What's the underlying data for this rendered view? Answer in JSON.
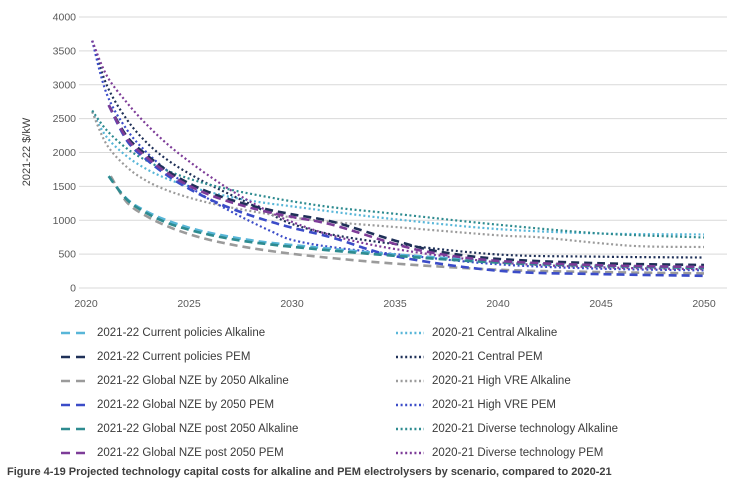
{
  "caption": "Figure 4-19 Projected technology capital costs for alkaline and PEM electrolysers by scenario, compared to 2020-21",
  "chart_data": {
    "type": "line",
    "title": "",
    "xlabel": "",
    "ylabel": "2021-22 $/kW",
    "xlim": [
      2020,
      2050
    ],
    "ylim": [
      0,
      4000
    ],
    "y_ticks": [
      0,
      500,
      1000,
      1500,
      2000,
      2500,
      3000,
      3500,
      4000
    ],
    "x_ticks": [
      2020,
      2025,
      2030,
      2035,
      2040,
      2045,
      2050
    ],
    "grid": "horizontal",
    "legend_position": "bottom-two-columns",
    "colors": {
      "cyan": "#58B6D8",
      "navy": "#1F3058",
      "gray": "#9B9B9B",
      "blue": "#3B4CC8",
      "teal": "#2E8B90",
      "purple": "#7D3C98",
      "gridline": "#D9D9D9",
      "tick_text": "#595959"
    },
    "series": [
      {
        "name": "2021-22 Current policies Alkaline",
        "color": "#58B6D8",
        "dash": "dashed",
        "points": [
          [
            2021.1,
            1650
          ],
          [
            2022,
            1310
          ],
          [
            2023,
            1120
          ],
          [
            2024,
            990
          ],
          [
            2025,
            890
          ],
          [
            2026,
            815
          ],
          [
            2027,
            755
          ],
          [
            2028,
            705
          ],
          [
            2029,
            665
          ],
          [
            2030,
            635
          ],
          [
            2032,
            575
          ],
          [
            2035,
            495
          ],
          [
            2040,
            395
          ],
          [
            2045,
            335
          ],
          [
            2050,
            300
          ]
        ]
      },
      {
        "name": "2021-22 Current policies PEM",
        "color": "#1F3058",
        "dash": "dashed",
        "points": [
          [
            2021.1,
            2700
          ],
          [
            2022,
            2230
          ],
          [
            2023,
            1950
          ],
          [
            2024,
            1720
          ],
          [
            2025,
            1545
          ],
          [
            2026,
            1410
          ],
          [
            2027,
            1305
          ],
          [
            2028,
            1218
          ],
          [
            2029,
            1147
          ],
          [
            2030,
            1088
          ],
          [
            2032,
            975
          ],
          [
            2035,
            700
          ],
          [
            2037,
            545
          ],
          [
            2040,
            430
          ],
          [
            2045,
            365
          ],
          [
            2050,
            340
          ]
        ]
      },
      {
        "name": "2021-22 Global NZE by 2050 Alkaline",
        "color": "#9B9B9B",
        "dash": "dashed",
        "points": [
          [
            2021.2,
            1650
          ],
          [
            2022,
            1260
          ],
          [
            2023,
            1050
          ],
          [
            2024,
            905
          ],
          [
            2025,
            795
          ],
          [
            2026,
            710
          ],
          [
            2027,
            645
          ],
          [
            2028,
            590
          ],
          [
            2029,
            545
          ],
          [
            2030,
            505
          ],
          [
            2032,
            440
          ],
          [
            2035,
            360
          ],
          [
            2040,
            270
          ],
          [
            2045,
            235
          ],
          [
            2050,
            215
          ]
        ]
      },
      {
        "name": "2021-22 Global NZE by 2050 PEM",
        "color": "#3B4CC8",
        "dash": "dashed",
        "points": [
          [
            2021.1,
            2700
          ],
          [
            2022,
            2170
          ],
          [
            2023,
            1880
          ],
          [
            2024,
            1650
          ],
          [
            2025,
            1465
          ],
          [
            2026,
            1310
          ],
          [
            2027,
            1180
          ],
          [
            2028,
            1070
          ],
          [
            2029,
            975
          ],
          [
            2030,
            890
          ],
          [
            2032,
            740
          ],
          [
            2035,
            470
          ],
          [
            2040,
            255
          ],
          [
            2045,
            205
          ],
          [
            2050,
            180
          ]
        ]
      },
      {
        "name": "2021-22 Global NZE post 2050 Alkaline",
        "color": "#2E8B90",
        "dash": "dashed",
        "points": [
          [
            2021.1,
            1650
          ],
          [
            2022,
            1300
          ],
          [
            2023,
            1095
          ],
          [
            2024,
            955
          ],
          [
            2025,
            860
          ],
          [
            2026,
            785
          ],
          [
            2027,
            725
          ],
          [
            2028,
            678
          ],
          [
            2029,
            640
          ],
          [
            2030,
            608
          ],
          [
            2032,
            550
          ],
          [
            2035,
            475
          ],
          [
            2040,
            375
          ],
          [
            2045,
            325
          ],
          [
            2050,
            295
          ]
        ]
      },
      {
        "name": "2021-22 Global NZE post 2050 PEM",
        "color": "#7D3C98",
        "dash": "dashed",
        "points": [
          [
            2021.1,
            2700
          ],
          [
            2022,
            2200
          ],
          [
            2023,
            1915
          ],
          [
            2024,
            1685
          ],
          [
            2025,
            1510
          ],
          [
            2026,
            1375
          ],
          [
            2027,
            1270
          ],
          [
            2028,
            1183
          ],
          [
            2029,
            1110
          ],
          [
            2030,
            1050
          ],
          [
            2032,
            930
          ],
          [
            2035,
            650
          ],
          [
            2037,
            510
          ],
          [
            2040,
            400
          ],
          [
            2045,
            335
          ],
          [
            2050,
            310
          ]
        ]
      },
      {
        "name": "2020-21 Central Alkaline",
        "color": "#58B6D8",
        "dash": "dotted",
        "points": [
          [
            2020.3,
            2600
          ],
          [
            2021,
            2230
          ],
          [
            2022,
            1940
          ],
          [
            2023,
            1745
          ],
          [
            2024,
            1605
          ],
          [
            2025,
            1500
          ],
          [
            2026,
            1415
          ],
          [
            2027,
            1345
          ],
          [
            2028,
            1288
          ],
          [
            2029,
            1243
          ],
          [
            2030,
            1205
          ],
          [
            2032,
            1125
          ],
          [
            2035,
            1015
          ],
          [
            2040,
            870
          ],
          [
            2045,
            805
          ],
          [
            2050,
            790
          ]
        ]
      },
      {
        "name": "2020-21 Central PEM",
        "color": "#1F3058",
        "dash": "dotted",
        "points": [
          [
            2020.3,
            3650
          ],
          [
            2021,
            3000
          ],
          [
            2022,
            2480
          ],
          [
            2023,
            2130
          ],
          [
            2024,
            1880
          ],
          [
            2025,
            1690
          ],
          [
            2026,
            1525
          ],
          [
            2027,
            1380
          ],
          [
            2028,
            1235
          ],
          [
            2029,
            1085
          ],
          [
            2030,
            945
          ],
          [
            2032,
            785
          ],
          [
            2035,
            650
          ],
          [
            2040,
            495
          ],
          [
            2045,
            462
          ],
          [
            2050,
            450
          ]
        ]
      },
      {
        "name": "2020-21 High VRE Alkaline",
        "color": "#9B9B9B",
        "dash": "dotted",
        "points": [
          [
            2020.3,
            2600
          ],
          [
            2021,
            2120
          ],
          [
            2022,
            1780
          ],
          [
            2023,
            1570
          ],
          [
            2024,
            1435
          ],
          [
            2025,
            1335
          ],
          [
            2026,
            1255
          ],
          [
            2027,
            1190
          ],
          [
            2028,
            1135
          ],
          [
            2029,
            1085
          ],
          [
            2030,
            1042
          ],
          [
            2032,
            972
          ],
          [
            2035,
            900
          ],
          [
            2040,
            778
          ],
          [
            2042,
            748
          ],
          [
            2045,
            660
          ],
          [
            2047,
            615
          ],
          [
            2050,
            605
          ]
        ]
      },
      {
        "name": "2020-21 High VRE PEM",
        "color": "#3B4CC8",
        "dash": "dotted",
        "points": [
          [
            2020.3,
            3650
          ],
          [
            2021,
            2870
          ],
          [
            2022,
            2330
          ],
          [
            2023,
            1985
          ],
          [
            2024,
            1720
          ],
          [
            2025,
            1500
          ],
          [
            2026,
            1305
          ],
          [
            2027,
            1135
          ],
          [
            2028,
            980
          ],
          [
            2029,
            835
          ],
          [
            2030,
            710
          ],
          [
            2032,
            600
          ],
          [
            2035,
            500
          ],
          [
            2040,
            350
          ],
          [
            2045,
            285
          ],
          [
            2050,
            260
          ]
        ]
      },
      {
        "name": "2020-21 Diverse technology Alkaline",
        "color": "#2E8B90",
        "dash": "dotted",
        "points": [
          [
            2020.3,
            2620
          ],
          [
            2021,
            2330
          ],
          [
            2022,
            2055
          ],
          [
            2023,
            1870
          ],
          [
            2024,
            1725
          ],
          [
            2025,
            1615
          ],
          [
            2026,
            1525
          ],
          [
            2027,
            1452
          ],
          [
            2028,
            1390
          ],
          [
            2029,
            1333
          ],
          [
            2030,
            1280
          ],
          [
            2032,
            1190
          ],
          [
            2035,
            1095
          ],
          [
            2040,
            935
          ],
          [
            2045,
            805
          ],
          [
            2050,
            745
          ]
        ]
      },
      {
        "name": "2020-21 Diverse technology PEM",
        "color": "#7D3C98",
        "dash": "dotted",
        "points": [
          [
            2020.3,
            3650
          ],
          [
            2021,
            3140
          ],
          [
            2022,
            2730
          ],
          [
            2023,
            2395
          ],
          [
            2024,
            2110
          ],
          [
            2025,
            1870
          ],
          [
            2026,
            1650
          ],
          [
            2027,
            1450
          ],
          [
            2028,
            1270
          ],
          [
            2029,
            1110
          ],
          [
            2030,
            975
          ],
          [
            2032,
            770
          ],
          [
            2035,
            575
          ],
          [
            2040,
            380
          ],
          [
            2045,
            305
          ],
          [
            2050,
            278
          ]
        ]
      }
    ]
  }
}
